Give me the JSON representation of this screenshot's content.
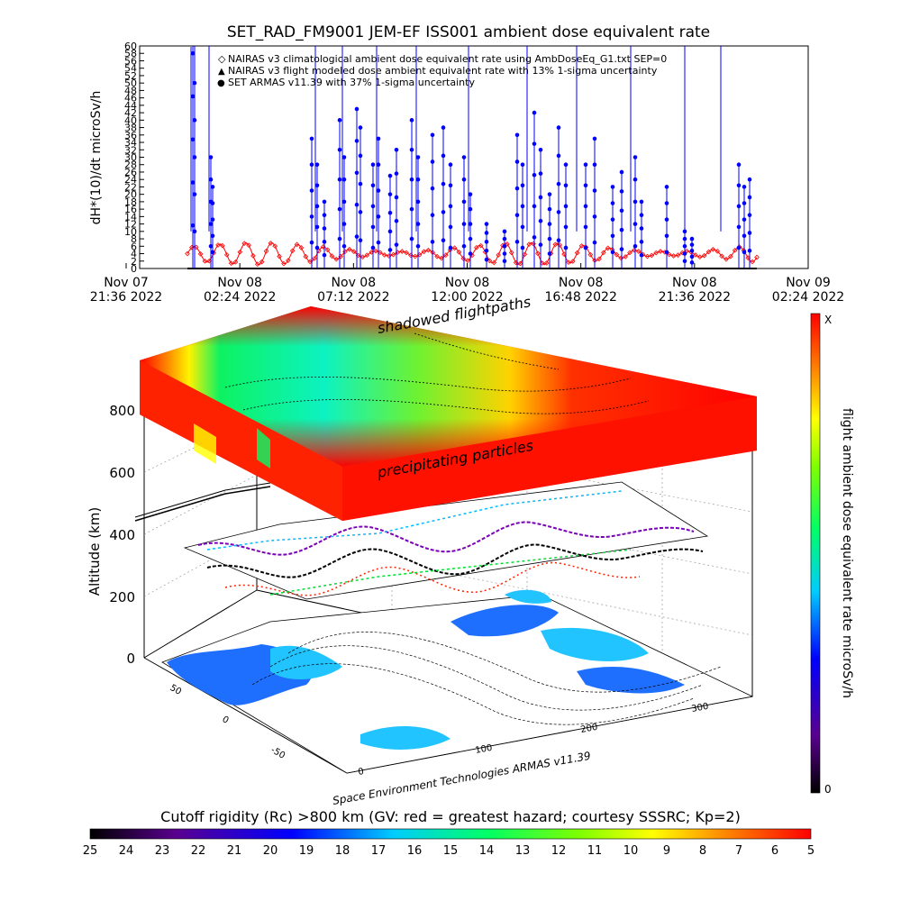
{
  "colors": {
    "series_climatological": "#ff0000",
    "series_flight_modeled": "#000000",
    "series_armas": "#0000ff",
    "axis": "#000000"
  },
  "chart_data": [
    {
      "type": "scatter",
      "title": "SET_RAD_FM9001  JEM-EF ISS001 ambient dose equivalent rate",
      "ylabel": "dH*(10)/dt microSv/h",
      "xlabel": "",
      "ylim": [
        0,
        60
      ],
      "ytick_labels": [
        "0",
        "2",
        "4",
        "6",
        "8",
        "10",
        "12",
        "14",
        "16",
        "18",
        "20",
        "22",
        "24",
        "26",
        "28",
        "30",
        "32",
        "34",
        "36",
        "38",
        "40",
        "42",
        "44",
        "46",
        "48",
        "50",
        "52",
        "54",
        "56",
        "58",
        "60"
      ],
      "x_ticks": [
        {
          "line1": "Nov 07",
          "line2": "21:36 2022"
        },
        {
          "line1": "Nov 08",
          "line2": "02:24 2022"
        },
        {
          "line1": "Nov 08",
          "line2": "07:12 2022"
        },
        {
          "line1": "Nov 08",
          "line2": "12:00 2022"
        },
        {
          "line1": "Nov 08",
          "line2": "16:48 2022"
        },
        {
          "line1": "Nov 08",
          "line2": "21:36 2022"
        },
        {
          "line1": "Nov 09",
          "line2": "02:24 2022"
        }
      ],
      "legend": [
        {
          "symbol": "◇",
          "text": "NAIRAS v3 climatological ambient dose equivalent rate using AmbDoseEq_G1.txt SEP=0"
        },
        {
          "symbol": "▲",
          "text": "NAIRAS v3 flight modeled dose ambient equivalent rate with 13% 1-sigma uncertainty"
        },
        {
          "symbol": "●",
          "text": "SET ARMAS v11.39 with 37% 1-sigma uncertainty"
        }
      ],
      "legend_position": "top",
      "series": [
        {
          "name": "NAIRAS v3 climatological ambient dose equivalent rate",
          "values_range": [
            1,
            7
          ],
          "note": "oscillating with orbit"
        },
        {
          "name": "SET ARMAS v11.39",
          "values_range": [
            0,
            60
          ]
        }
      ]
    },
    {
      "type": "heatmap",
      "zlabel": "Altitude (km)",
      "z_ticks": [
        "0",
        "200",
        "400",
        "600",
        "800"
      ],
      "lon_ticks": [
        "0",
        "100",
        "200",
        "300"
      ],
      "lat_ticks": [
        "-50",
        "0",
        "50"
      ],
      "annotations": [
        "shadowed flightpaths",
        "precipitating particles"
      ],
      "credit": "Space Environment Technologies ARMAS v11.39",
      "colorbar_right": {
        "label": "flight ambient dose equivalent rate microSv/h",
        "top": "X",
        "bottom": "0"
      },
      "colorbar_bottom": {
        "label": "Cutoff rigidity (Rc) >800 km (GV: red = greatest hazard; courtesy SSSRC; Kp=2)",
        "ticks": [
          "25",
          "24",
          "23",
          "22",
          "21",
          "20",
          "19",
          "18",
          "17",
          "16",
          "15",
          "14",
          "13",
          "12",
          "11",
          "10",
          "9",
          "8",
          "7",
          "6",
          "5"
        ]
      }
    }
  ]
}
